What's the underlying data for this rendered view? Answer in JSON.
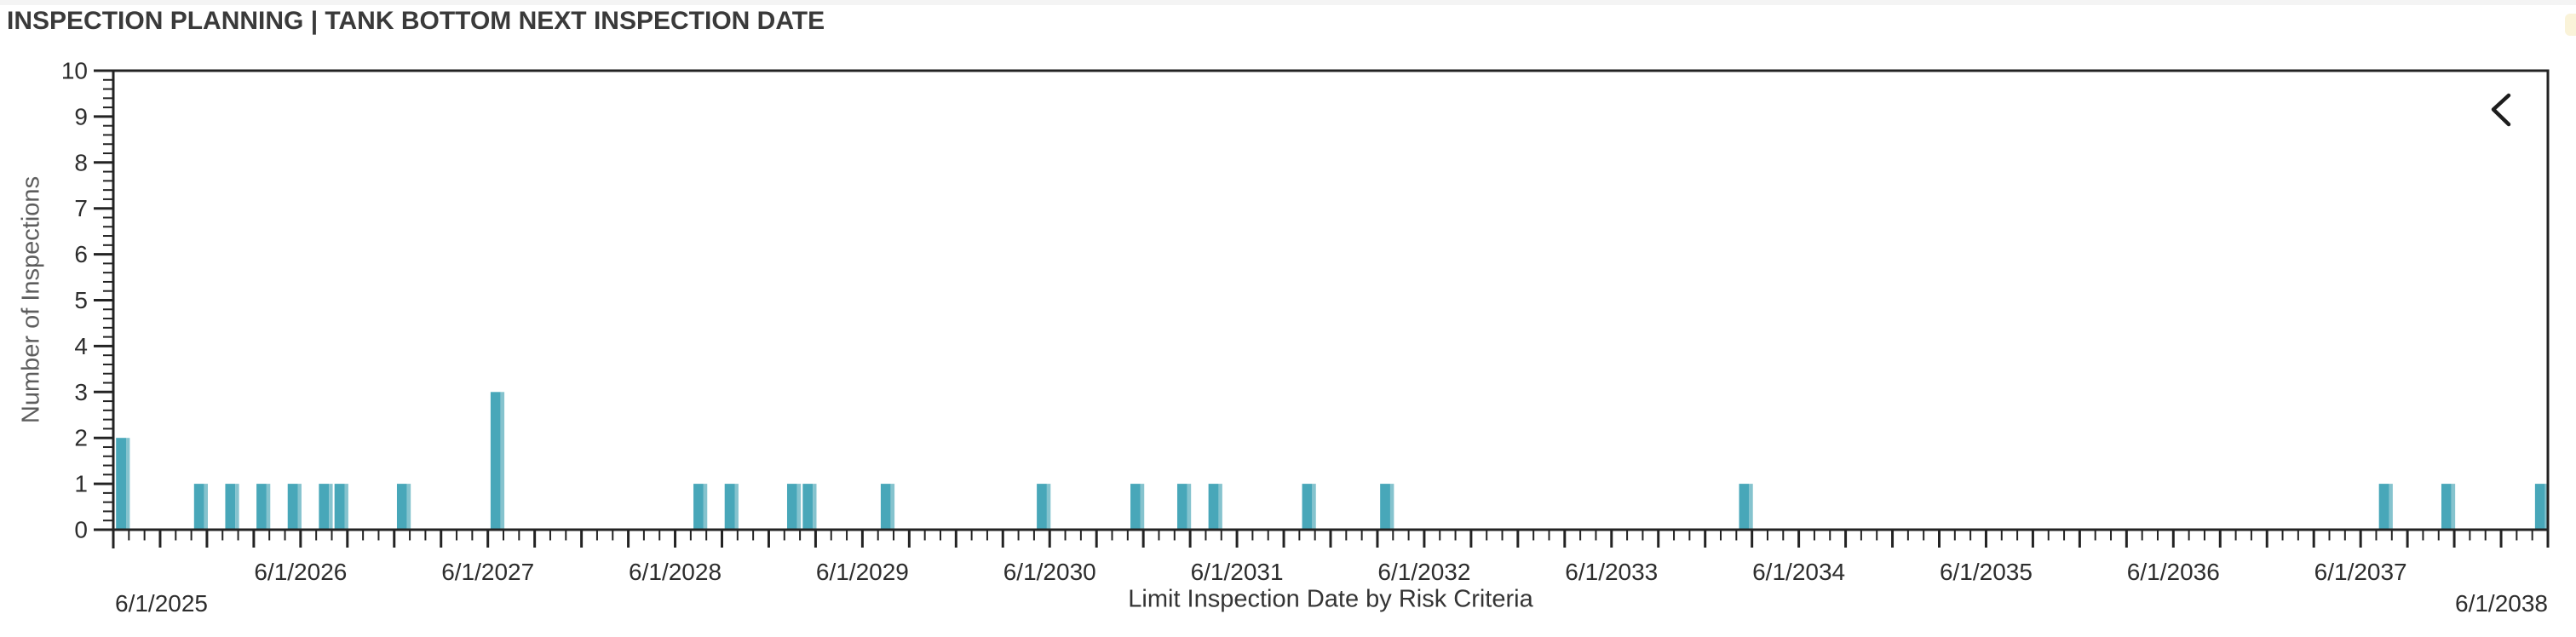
{
  "header": {
    "title": "INSPECTION PLANNING | TANK BOTTOM NEXT INSPECTION DATE"
  },
  "nav": {
    "collapse_icon": "chevron-left"
  },
  "colors": {
    "bar": "#48a7b9",
    "bar_highlight": "#85c3ce",
    "axis": "#232323",
    "tick_label": "#2d2d2d",
    "title": "#3a3a3a"
  },
  "chart_data": {
    "type": "bar",
    "title": "",
    "xlabel": "Limit Inspection Date by Risk Criteria",
    "ylabel": "Number of Inspections",
    "ylim": [
      0,
      10
    ],
    "grid": false,
    "legend": "none",
    "x_axis_type": "time-monthly",
    "x_range": [
      "6/1/2025",
      "6/1/2038"
    ],
    "x_tick_labels": [
      "6/1/2025",
      "6/1/2026",
      "6/1/2027",
      "6/1/2028",
      "6/1/2029",
      "6/1/2030",
      "6/1/2031",
      "6/1/2032",
      "6/1/2033",
      "6/1/2034",
      "6/1/2035",
      "6/1/2036",
      "6/1/2037",
      "6/1/2038"
    ],
    "y_tick_labels": [
      "0",
      "1",
      "2",
      "3",
      "4",
      "5",
      "6",
      "7",
      "8",
      "9",
      "10"
    ],
    "minor_tick_unit": "month",
    "major_tick_unit": "quarter",
    "bar_width_months": 1,
    "points": [
      {
        "date": "6/1/2025",
        "value": 2
      },
      {
        "date": "11/1/2025",
        "value": 1
      },
      {
        "date": "1/1/2026",
        "value": 1
      },
      {
        "date": "3/1/2026",
        "value": 1
      },
      {
        "date": "5/1/2026",
        "value": 1
      },
      {
        "date": "7/1/2026",
        "value": 1
      },
      {
        "date": "8/1/2026",
        "value": 1
      },
      {
        "date": "12/1/2026",
        "value": 1
      },
      {
        "date": "6/1/2027",
        "value": 3
      },
      {
        "date": "7/1/2028",
        "value": 1
      },
      {
        "date": "9/1/2028",
        "value": 1
      },
      {
        "date": "1/1/2029",
        "value": 1
      },
      {
        "date": "2/1/2029",
        "value": 1
      },
      {
        "date": "7/1/2029",
        "value": 1
      },
      {
        "date": "5/1/2030",
        "value": 1
      },
      {
        "date": "11/1/2030",
        "value": 1
      },
      {
        "date": "2/1/2031",
        "value": 1
      },
      {
        "date": "4/1/2031",
        "value": 1
      },
      {
        "date": "10/1/2031",
        "value": 1
      },
      {
        "date": "3/1/2032",
        "value": 1
      },
      {
        "date": "2/1/2034",
        "value": 1
      },
      {
        "date": "7/1/2037",
        "value": 1
      },
      {
        "date": "11/1/2037",
        "value": 1
      },
      {
        "date": "5/1/2038",
        "value": 1
      }
    ]
  }
}
